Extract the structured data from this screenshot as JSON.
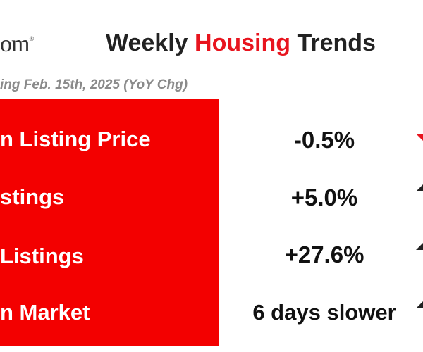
{
  "header": {
    "logo": "om",
    "logo_mark": "®",
    "title_parts": [
      "Weekly",
      "Housing",
      "Trends"
    ],
    "subtitle": "ing Feb. 15th, 2025 (YoY Chg)"
  },
  "rows": [
    {
      "label": "n Listing Price",
      "value": "-0.5%"
    },
    {
      "label": "stings",
      "value": "+5.0%"
    },
    {
      "label": "Listings",
      "value": "+27.6%"
    },
    {
      "label": "n Market",
      "value": "6 days slower"
    }
  ]
}
